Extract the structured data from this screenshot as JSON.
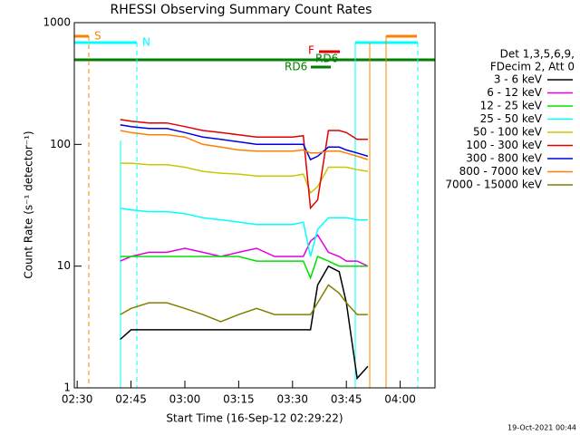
{
  "chart_data": {
    "type": "line",
    "title": "RHESSI Observing Summary Count Rates",
    "x_label": "Start Time (16-Sep-12 02:29:22)",
    "y_label": "Count Rate (s⁻¹ detector⁻¹)",
    "log_y": true,
    "legend_header": [
      "Det 1,3,5,6,9,",
      "FDecim 2, Att 0"
    ],
    "footer": "19-Oct-2021 00:44",
    "annotations": [
      "S",
      "N",
      "F",
      "RD6",
      "RD6"
    ],
    "xlim": [
      149.2,
      249.7
    ],
    "xticks": [
      {
        "value": 150,
        "label": "02:30"
      },
      {
        "value": 165,
        "label": "02:45"
      },
      {
        "value": 180,
        "label": "03:00"
      },
      {
        "value": 195,
        "label": "03:15"
      },
      {
        "value": 210,
        "label": "03:30"
      },
      {
        "value": 225,
        "label": "03:45"
      },
      {
        "value": 240,
        "label": "04:00"
      }
    ],
    "ylim": [
      1,
      1000
    ],
    "yticks": [
      1,
      10,
      100,
      1000
    ],
    "x": [
      162,
      165,
      170,
      175,
      180,
      185,
      190,
      195,
      200,
      205,
      210,
      213,
      215,
      217,
      220,
      223,
      225,
      228,
      231
    ],
    "series": [
      {
        "name": "3 - 6 keV",
        "color": "#000000",
        "values": [
          2.5,
          3,
          3,
          3,
          3,
          3,
          3,
          3,
          3,
          3,
          3,
          3,
          3,
          7,
          10,
          9,
          5,
          1.2,
          1.5
        ]
      },
      {
        "name": "6 - 12 keV",
        "color": "#e000e0",
        "values": [
          11,
          12,
          13,
          13,
          14,
          13,
          12,
          13,
          14,
          12,
          12,
          12,
          16,
          18,
          13,
          12,
          11,
          11,
          10
        ]
      },
      {
        "name": "12 - 25 keV",
        "color": "#00e000",
        "values": [
          12,
          12,
          12,
          12,
          12,
          12,
          12,
          12,
          11,
          11,
          11,
          11,
          8,
          12,
          11,
          10,
          10,
          10,
          10
        ]
      },
      {
        "name": "25 - 50 keV",
        "color": "#00ffff",
        "values": [
          30,
          29,
          28,
          28,
          27,
          25,
          24,
          23,
          22,
          22,
          22,
          23,
          12,
          20,
          25,
          25,
          25,
          24,
          24
        ]
      },
      {
        "name": "50 - 100 keV",
        "color": "#c8c800",
        "values": [
          70,
          70,
          68,
          68,
          65,
          60,
          58,
          57,
          55,
          55,
          55,
          57,
          40,
          45,
          65,
          65,
          65,
          62,
          60
        ]
      },
      {
        "name": "100 - 300 keV",
        "color": "#e00000",
        "values": [
          160,
          155,
          150,
          150,
          140,
          130,
          125,
          120,
          115,
          115,
          115,
          118,
          30,
          35,
          130,
          130,
          125,
          110,
          110
        ]
      },
      {
        "name": "300 - 800 keV",
        "color": "#0000e0",
        "values": [
          145,
          140,
          135,
          135,
          125,
          115,
          110,
          105,
          100,
          100,
          100,
          100,
          75,
          80,
          95,
          95,
          90,
          85,
          80
        ]
      },
      {
        "name": "800 - 7000 keV",
        "color": "#ff8000",
        "values": [
          130,
          125,
          120,
          120,
          115,
          100,
          95,
          90,
          88,
          88,
          88,
          90,
          85,
          85,
          88,
          88,
          85,
          80,
          75
        ]
      },
      {
        "name": "7000 - 15000 keV",
        "color": "#808000",
        "values": [
          4,
          4.5,
          5,
          5,
          4.5,
          4,
          3.5,
          4,
          4.5,
          4,
          4,
          4,
          4,
          5,
          7,
          6,
          5,
          4,
          4
        ]
      }
    ]
  }
}
